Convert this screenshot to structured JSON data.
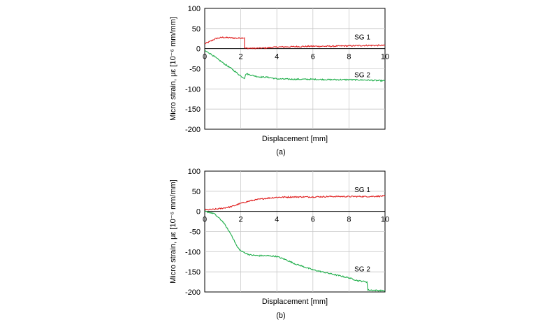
{
  "chart_data": [
    {
      "type": "line",
      "caption": "(a)",
      "xlabel": "Displacement [mm]",
      "ylabel": "Micro strain, με [10⁻⁶ mm/mm]",
      "xlim": [
        0,
        10
      ],
      "ylim": [
        -200,
        100
      ],
      "xticks": [
        0,
        2,
        4,
        6,
        8,
        10
      ],
      "yticks": [
        100,
        50,
        0,
        -50,
        -100,
        -150,
        -200
      ],
      "xtick_labels": [
        "0",
        "2",
        "4",
        "6",
        "8",
        "10"
      ],
      "ytick_labels": [
        "100",
        "50",
        "0",
        "-50",
        "-100",
        "-150",
        "-200"
      ],
      "grid": true,
      "series": [
        {
          "name": "SG 1",
          "color": "#e02020",
          "x": [
            0,
            0.3,
            0.6,
            1.0,
            1.4,
            1.8,
            2.1,
            2.2,
            2.2,
            2.5,
            3.0,
            3.5,
            4.0,
            5.0,
            6.0,
            7.0,
            8.0,
            9.0,
            10.0
          ],
          "y": [
            12,
            18,
            25,
            28,
            27,
            26,
            27,
            27,
            1,
            1,
            1,
            2,
            4,
            5,
            6,
            6,
            7,
            8,
            8
          ],
          "label_at": [
            8.3,
            30
          ]
        },
        {
          "name": "SG 2",
          "color": "#1fae4a",
          "x": [
            0,
            0.3,
            0.6,
            1.0,
            1.5,
            2.0,
            2.2,
            2.3,
            2.5,
            3.0,
            3.5,
            4.0,
            5.0,
            6.0,
            7.0,
            8.0,
            9.0,
            10.0
          ],
          "y": [
            -5,
            -12,
            -22,
            -35,
            -50,
            -68,
            -73,
            -62,
            -65,
            -70,
            -71,
            -75,
            -76,
            -76,
            -77,
            -77,
            -78,
            -80
          ],
          "label_at": [
            8.3,
            -64
          ]
        }
      ]
    },
    {
      "type": "line",
      "caption": "(b)",
      "xlabel": "Displacement [mm]",
      "ylabel": "Micro strain, με [10⁻⁶ mm/mm]",
      "xlim": [
        0,
        10
      ],
      "ylim": [
        -200,
        100
      ],
      "xticks": [
        0,
        2,
        4,
        6,
        8,
        10
      ],
      "yticks": [
        100,
        50,
        0,
        -50,
        -100,
        -150,
        -200
      ],
      "xtick_labels": [
        "0",
        "2",
        "4",
        "6",
        "8",
        "10"
      ],
      "ytick_labels": [
        "100",
        "50",
        "0",
        "-50",
        "-100",
        "-150",
        "-200"
      ],
      "grid": true,
      "series": [
        {
          "name": "SG 1",
          "color": "#e02020",
          "x": [
            0,
            0.5,
            1.0,
            1.5,
            2.0,
            2.5,
            3.0,
            3.5,
            4.0,
            5.0,
            6.0,
            7.0,
            8.0,
            9.0,
            10.0
          ],
          "y": [
            4,
            5,
            8,
            12,
            20,
            26,
            30,
            33,
            35,
            36,
            36,
            37,
            37,
            37,
            38
          ],
          "label_at": [
            8.3,
            55
          ]
        },
        {
          "name": "SG 2",
          "color": "#1fae4a",
          "x": [
            0,
            0.5,
            1.0,
            1.5,
            1.8,
            2.0,
            2.5,
            3.0,
            3.5,
            4.0,
            4.5,
            5.0,
            6.0,
            7.0,
            8.0,
            8.5,
            9.0,
            9.05,
            9.5,
            10.0
          ],
          "y": [
            0,
            -5,
            -25,
            -60,
            -88,
            -98,
            -108,
            -110,
            -110,
            -112,
            -120,
            -130,
            -145,
            -155,
            -165,
            -172,
            -175,
            -195,
            -196,
            -197
          ],
          "label_at": [
            8.3,
            -142
          ]
        }
      ]
    }
  ]
}
